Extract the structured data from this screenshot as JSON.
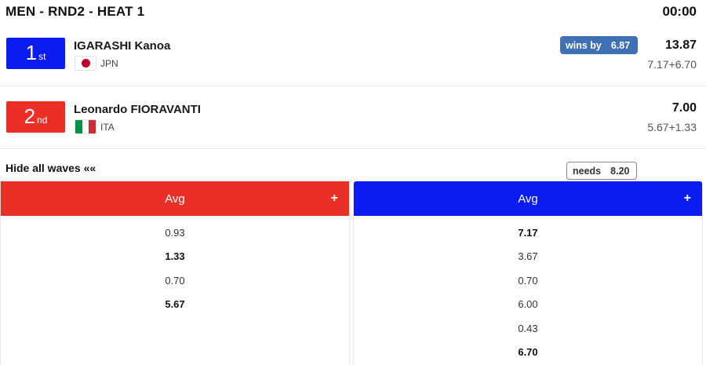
{
  "header": {
    "title": "MEN - RND2 - HEAT 1",
    "clock": "00:00"
  },
  "athletes": [
    {
      "place_num": "1",
      "place_suffix": "st",
      "name": "IGARASHI Kanoa",
      "country": "JPN",
      "status_label": "wins by",
      "status_value": "6.87",
      "total": "13.87",
      "breakdown": "7.17+6.70",
      "color": "#0a1cf2"
    },
    {
      "place_num": "2",
      "place_suffix": "nd",
      "name": "Leonardo FIORAVANTI",
      "country": "ITA",
      "status_label": "needs",
      "status_value": "8.20",
      "total": "7.00",
      "breakdown": "5.67+1.33",
      "color": "#ea2f26"
    }
  ],
  "waves_toggle": "Hide all waves ««",
  "columns": [
    {
      "header": "Avg",
      "expand": "+",
      "color": "#ea2f26",
      "waves": [
        {
          "score": "0.93",
          "counted": false
        },
        {
          "score": "1.33",
          "counted": true
        },
        {
          "score": "0.70",
          "counted": false
        },
        {
          "score": "5.67",
          "counted": true
        }
      ]
    },
    {
      "header": "Avg",
      "expand": "+",
      "color": "#0a1cf2",
      "waves": [
        {
          "score": "7.17",
          "counted": true
        },
        {
          "score": "3.67",
          "counted": false
        },
        {
          "score": "0.70",
          "counted": false
        },
        {
          "score": "6.00",
          "counted": false
        },
        {
          "score": "0.43",
          "counted": false
        },
        {
          "score": "6.70",
          "counted": true
        }
      ]
    }
  ]
}
